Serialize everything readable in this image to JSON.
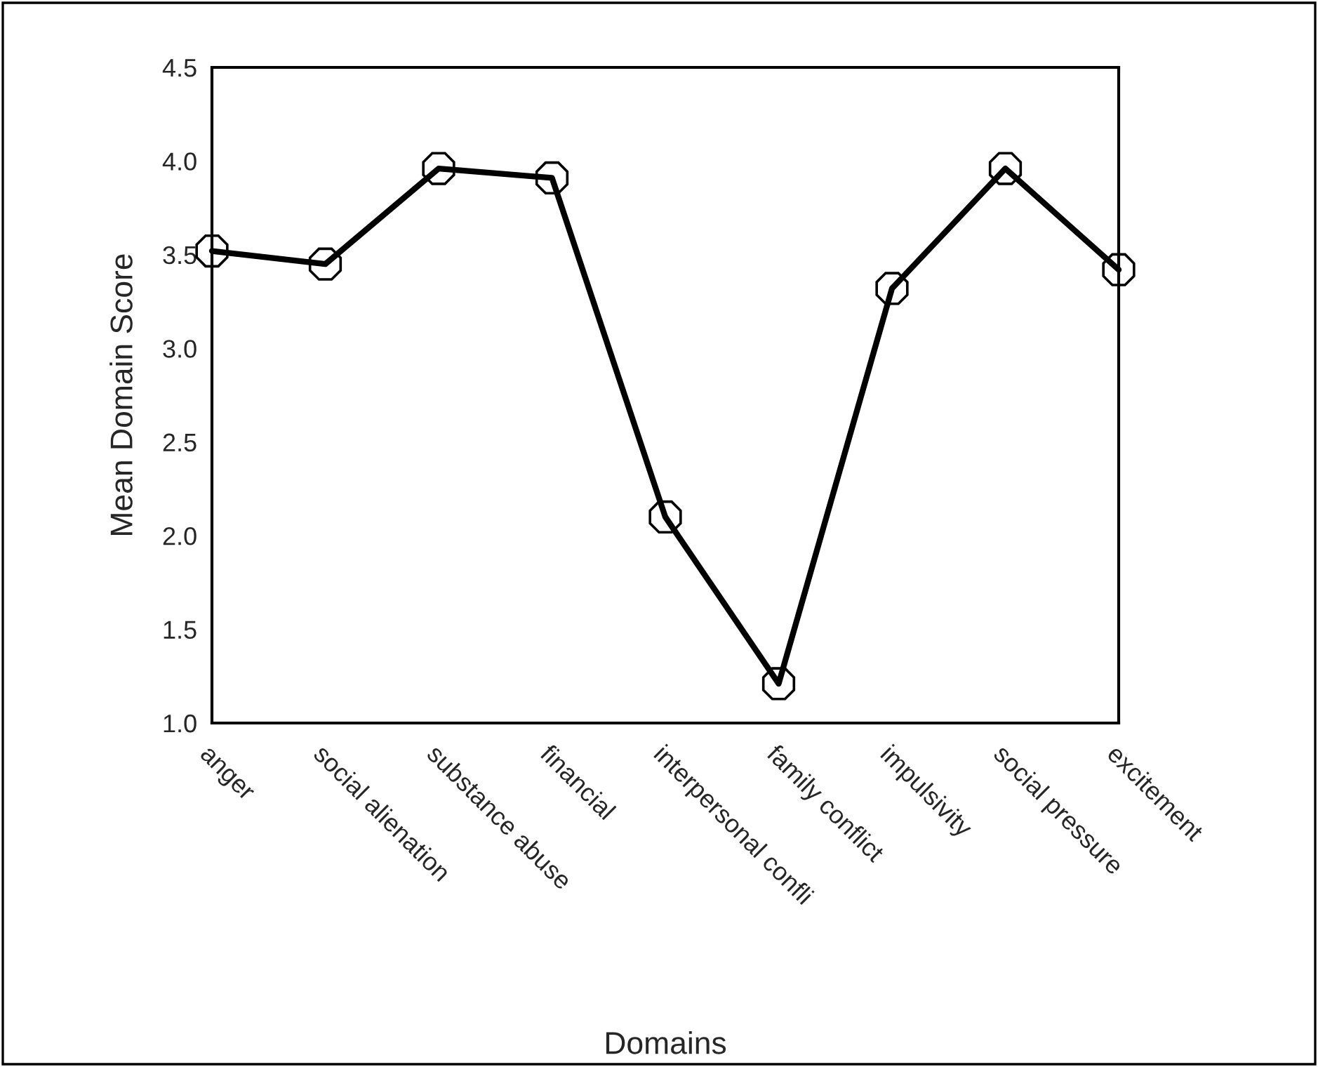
{
  "chart_data": {
    "type": "line",
    "xlabel": "Domains",
    "ylabel": "Mean Domain Score",
    "categories": [
      "anger",
      "social alienation",
      "substance abuse",
      "financial",
      "interpersonal confli",
      "family conflict",
      "impulsivity",
      "social pressure",
      "excitement"
    ],
    "series": [
      {
        "color": "#000000",
        "values": [
          3.52,
          3.45,
          3.96,
          3.91,
          2.1,
          1.21,
          3.32,
          3.96,
          3.42
        ]
      }
    ],
    "ylim": [
      1.0,
      4.5
    ],
    "yticks": [
      {
        "value": 1.0,
        "label": "1.0"
      },
      {
        "value": 1.5,
        "label": "1.5"
      },
      {
        "value": 2.0,
        "label": "2.0"
      },
      {
        "value": 2.5,
        "label": "2.5"
      },
      {
        "value": 3.0,
        "label": "3.0"
      },
      {
        "value": 3.5,
        "label": "3.5"
      },
      {
        "value": 4.0,
        "label": "4.0"
      },
      {
        "value": 4.5,
        "label": "4.5"
      }
    ],
    "marker": "circle",
    "line_style": "solid",
    "grid": false,
    "legend": false
  }
}
